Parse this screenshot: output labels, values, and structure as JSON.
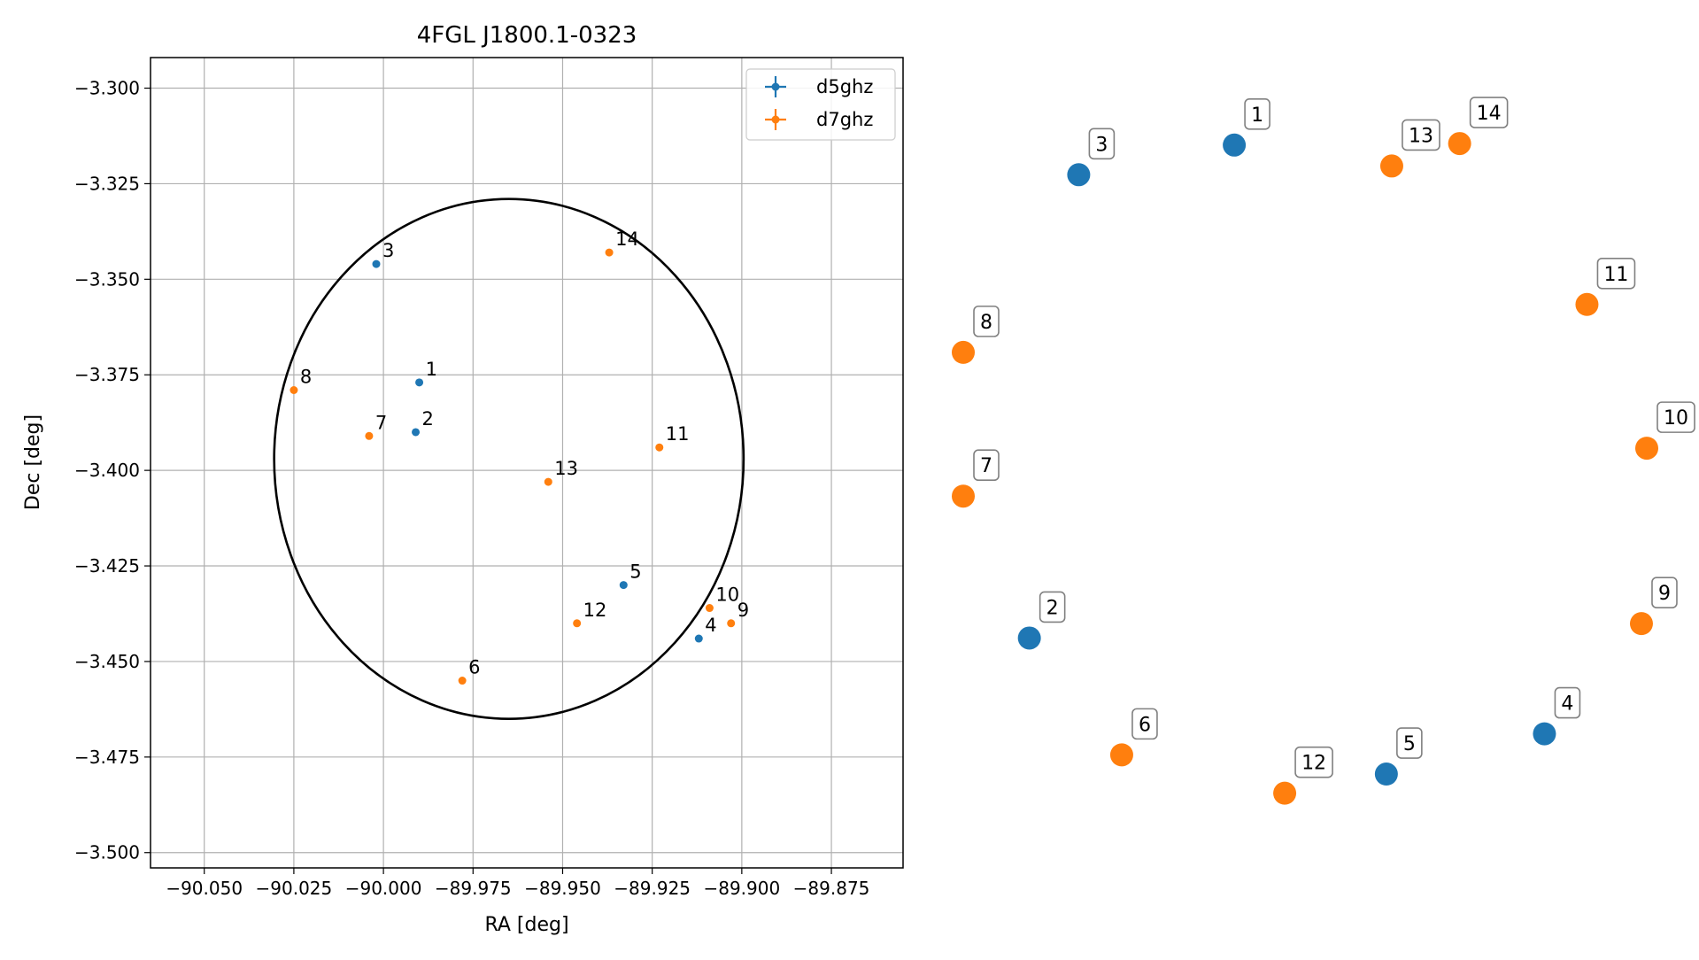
{
  "chart_data": [
    {
      "type": "scatter",
      "title": "4FGL J1800.1-0323",
      "xlabel": "RA [deg]",
      "ylabel": "Dec [deg]",
      "xlim": [
        -90.065,
        -89.855
      ],
      "ylim": [
        -3.504,
        -3.292
      ],
      "x_ticks": [
        -90.05,
        -90.025,
        -90.0,
        -89.975,
        -89.95,
        -89.925,
        -89.9,
        -89.875
      ],
      "x_tick_labels": [
        "−90.050",
        "−90.025",
        "−90.000",
        "−89.975",
        "−89.950",
        "−89.925",
        "−89.900",
        "−89.875"
      ],
      "y_ticks": [
        -3.3,
        -3.325,
        -3.35,
        -3.375,
        -3.4,
        -3.425,
        -3.45,
        -3.475,
        -3.5
      ],
      "y_tick_labels": [
        "−3.300",
        "−3.325",
        "−3.350",
        "−3.375",
        "−3.400",
        "−3.425",
        "−3.450",
        "−3.475",
        "−3.500"
      ],
      "grid": true,
      "legend_position": "top-right",
      "circle": {
        "center": [
          -89.965,
          -3.397
        ],
        "radius_ra": 0.0655,
        "radius_dec": 0.068
      },
      "series": [
        {
          "name": "d5ghz",
          "color": "#1f77b4",
          "points": [
            {
              "label": "1",
              "x": -89.99,
              "y": -3.377
            },
            {
              "label": "2",
              "x": -89.991,
              "y": -3.39
            },
            {
              "label": "3",
              "x": -90.002,
              "y": -3.346
            },
            {
              "label": "4",
              "x": -89.912,
              "y": -3.444
            },
            {
              "label": "5",
              "x": -89.933,
              "y": -3.43
            }
          ]
        },
        {
          "name": "d7ghz",
          "color": "#ff7f0e",
          "points": [
            {
              "label": "6",
              "x": -89.978,
              "y": -3.455
            },
            {
              "label": "7",
              "x": -90.004,
              "y": -3.391
            },
            {
              "label": "8",
              "x": -90.025,
              "y": -3.379
            },
            {
              "label": "9",
              "x": -89.903,
              "y": -3.44
            },
            {
              "label": "10",
              "x": -89.909,
              "y": -3.436
            },
            {
              "label": "11",
              "x": -89.923,
              "y": -3.394
            },
            {
              "label": "12",
              "x": -89.946,
              "y": -3.44
            },
            {
              "label": "13",
              "x": -89.954,
              "y": -3.403
            },
            {
              "label": "14",
              "x": -89.937,
              "y": -3.343
            }
          ]
        }
      ]
    },
    {
      "type": "scatter",
      "title": "",
      "points": [
        {
          "label": "1",
          "series": "d5ghz",
          "x": 0.3965,
          "y": 0.9648
        },
        {
          "label": "2",
          "series": "d5ghz",
          "x": 0.0967,
          "y": 0.2602
        },
        {
          "label": "3",
          "series": "d5ghz",
          "x": 0.1689,
          "y": 0.9224
        },
        {
          "label": "4",
          "series": "d5ghz",
          "x": 0.8503,
          "y": 0.1233
        },
        {
          "label": "5",
          "series": "d5ghz",
          "x": 0.619,
          "y": 0.0658
        },
        {
          "label": "6",
          "series": "d7ghz",
          "x": 0.2318,
          "y": 0.0932
        },
        {
          "label": "7",
          "series": "d7ghz",
          "x": 0.0,
          "y": 0.463
        },
        {
          "label": "8",
          "series": "d7ghz",
          "x": 0.0,
          "y": 0.6685
        },
        {
          "label": "9",
          "series": "d7ghz",
          "x": 0.9922,
          "y": 0.2808
        },
        {
          "label": "10",
          "series": "d7ghz",
          "x": 1.0,
          "y": 0.5315
        },
        {
          "label": "11",
          "series": "d7ghz",
          "x": 0.9125,
          "y": 0.737
        },
        {
          "label": "12",
          "series": "d7ghz",
          "x": 0.4703,
          "y": 0.0384
        },
        {
          "label": "13",
          "series": "d7ghz",
          "x": 0.6269,
          "y": 0.9349
        },
        {
          "label": "14",
          "series": "d7ghz",
          "x": 0.7262,
          "y": 0.967
        }
      ]
    }
  ]
}
